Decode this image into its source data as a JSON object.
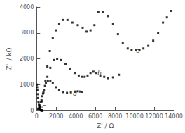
{
  "chart_data": {
    "type": "scatter",
    "xlabel": "Z' / Ω",
    "ylabel": "Z'' / kΩ",
    "xlim": [
      0,
      14000
    ],
    "ylim": [
      0,
      4000
    ],
    "xticks": [
      0,
      2000,
      4000,
      6000,
      8000,
      10000,
      12000,
      14000
    ],
    "yticks": [
      0,
      1000,
      2000,
      3000,
      4000
    ],
    "grid": false,
    "marker": "square",
    "series": [
      {
        "name": "a",
        "color": "black",
        "x": [
          400,
          550,
          700,
          900,
          1100,
          1350,
          1650,
          1950,
          2300,
          2700,
          3150,
          3650,
          4200,
          4700,
          5100,
          5500,
          5900,
          6300,
          6800,
          7300,
          7800,
          8300,
          8800,
          9300,
          9700,
          10100,
          10500,
          10900,
          11400,
          11900,
          12400,
          12900,
          13300,
          13700
        ],
        "values": [
          150,
          350,
          700,
          1150,
          1700,
          2300,
          2800,
          3100,
          3350,
          3500,
          3500,
          3400,
          3300,
          3200,
          3050,
          3100,
          3300,
          3800,
          3800,
          3650,
          3350,
          2950,
          2600,
          2400,
          2350,
          2350,
          2350,
          2400,
          2500,
          2700,
          3000,
          3400,
          3600,
          3850
        ]
      },
      {
        "name": "b",
        "color": "black",
        "x": [
          200,
          350,
          500,
          650,
          850,
          1100,
          1400,
          1750,
          2100,
          2500,
          2950,
          3450,
          3900,
          4300,
          4600,
          4900,
          5200,
          5500,
          5800,
          6100,
          6500,
          6900,
          7300,
          7800,
          8400
        ],
        "values": [
          80,
          200,
          400,
          650,
          950,
          1300,
          1650,
          1950,
          2000,
          1950,
          1800,
          1600,
          1450,
          1350,
          1300,
          1300,
          1350,
          1450,
          1500,
          1450,
          1350,
          1300,
          1250,
          1280,
          1380
        ]
      },
      {
        "name": "c",
        "color": "black",
        "x": [
          30,
          55,
          80,
          110,
          145,
          185,
          230,
          280,
          330,
          385,
          440,
          490,
          530,
          565,
          595
        ],
        "values": [
          1000,
          900,
          780,
          630,
          480,
          340,
          220,
          130,
          70,
          30,
          10,
          3,
          1,
          0,
          0
        ]
      },
      {
        "name": "d",
        "color": "black",
        "x": [
          150,
          280,
          420,
          580,
          750,
          950,
          1150,
          1400,
          1650,
          1950,
          2300,
          2700,
          3100,
          3500,
          3900,
          4200,
          4450,
          4650
        ],
        "values": [
          50,
          150,
          320,
          550,
          800,
          1050,
          1150,
          1150,
          1050,
          900,
          780,
          710,
          680,
          700,
          730,
          740,
          730,
          720
        ]
      }
    ],
    "annotations": [
      {
        "text": "a",
        "x": 10150,
        "y": 2300,
        "color": "black"
      },
      {
        "text": "b",
        "x": 6200,
        "y": 1430,
        "color": "black"
      },
      {
        "text": "c",
        "x": 560,
        "y": 170,
        "color": "black"
      },
      {
        "text": "d",
        "x": 3700,
        "y": 640,
        "color": "black"
      }
    ]
  }
}
